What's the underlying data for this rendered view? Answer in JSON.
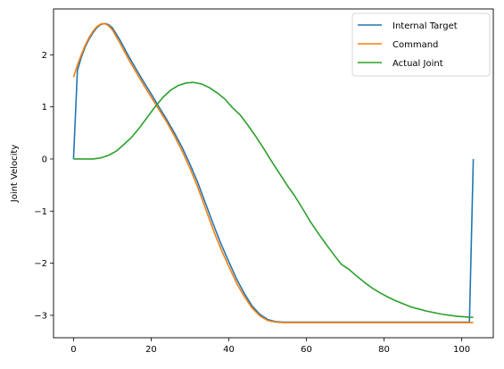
{
  "chart_data": {
    "type": "line",
    "title": "",
    "xlabel": "",
    "ylabel": "Joint Velocity",
    "xlim": [
      -5.15,
      108.15
    ],
    "ylim": [
      -3.43,
      2.88
    ],
    "xticks": [
      0,
      20,
      40,
      60,
      80,
      100
    ],
    "yticks": [
      -3,
      -2,
      -1,
      0,
      1,
      2
    ],
    "xtick_labels": [
      "0",
      "20",
      "40",
      "60",
      "80",
      "100"
    ],
    "ytick_labels": [
      "−3",
      "−2",
      "−1",
      "0",
      "1",
      "2"
    ],
    "grid": false,
    "legend_position": "top-right",
    "series": [
      {
        "name": "Internal Target",
        "color": "#1f77b4",
        "x": [
          0,
          1,
          2,
          3,
          4,
          5,
          6,
          7,
          8,
          9,
          10,
          12,
          14,
          16,
          18,
          20,
          22,
          24,
          26,
          28,
          30,
          32,
          34,
          36,
          38,
          40,
          42,
          44,
          46,
          48,
          50,
          52,
          54,
          56,
          58,
          60,
          70,
          80,
          90,
          100,
          102,
          103
        ],
        "y": [
          0,
          1.7,
          1.95,
          2.15,
          2.3,
          2.42,
          2.52,
          2.58,
          2.6,
          2.58,
          2.52,
          2.28,
          2.0,
          1.74,
          1.49,
          1.25,
          1.0,
          0.76,
          0.5,
          0.22,
          -0.1,
          -0.45,
          -0.85,
          -1.25,
          -1.63,
          -1.97,
          -2.3,
          -2.58,
          -2.82,
          -2.98,
          -3.08,
          -3.12,
          -3.13,
          -3.13,
          -3.13,
          -3.13,
          -3.13,
          -3.13,
          -3.13,
          -3.13,
          -3.13,
          0
        ]
      },
      {
        "name": "Command",
        "color": "#ff7f0e",
        "x": [
          0,
          1,
          2,
          3,
          4,
          5,
          6,
          7,
          8,
          9,
          10,
          12,
          14,
          16,
          18,
          20,
          22,
          24,
          26,
          28,
          30,
          32,
          34,
          36,
          38,
          40,
          42,
          44,
          46,
          48,
          50,
          52,
          54,
          56,
          58,
          60,
          70,
          80,
          90,
          100,
          103
        ],
        "y": [
          1.57,
          1.8,
          2.0,
          2.18,
          2.33,
          2.45,
          2.54,
          2.59,
          2.6,
          2.56,
          2.48,
          2.22,
          1.94,
          1.68,
          1.43,
          1.19,
          0.95,
          0.71,
          0.44,
          0.15,
          -0.18,
          -0.54,
          -0.95,
          -1.36,
          -1.73,
          -2.06,
          -2.38,
          -2.64,
          -2.86,
          -3.01,
          -3.1,
          -3.13,
          -3.14,
          -3.14,
          -3.14,
          -3.14,
          -3.14,
          -3.14,
          -3.14,
          -3.14,
          -3.14
        ]
      },
      {
        "name": "Actual Joint",
        "color": "#2ca02c",
        "x": [
          0,
          3,
          5,
          7,
          9,
          11,
          13,
          15,
          17,
          19,
          21,
          23,
          25,
          27,
          29,
          31,
          33,
          35,
          37,
          39,
          41,
          43,
          45,
          47,
          49,
          51,
          53,
          55,
          57,
          59,
          61,
          63,
          65,
          67,
          69,
          70,
          71,
          73,
          75,
          77,
          79,
          81,
          83,
          85,
          87,
          89,
          91,
          93,
          95,
          97,
          99,
          101,
          103
        ],
        "y": [
          0,
          0,
          0,
          0.02,
          0.07,
          0.15,
          0.28,
          0.42,
          0.6,
          0.8,
          1.0,
          1.18,
          1.32,
          1.41,
          1.46,
          1.47,
          1.44,
          1.37,
          1.27,
          1.15,
          0.98,
          0.84,
          0.64,
          0.43,
          0.2,
          -0.04,
          -0.27,
          -0.5,
          -0.71,
          -0.95,
          -1.2,
          -1.42,
          -1.63,
          -1.83,
          -2.02,
          -2.07,
          -2.12,
          -2.25,
          -2.37,
          -2.48,
          -2.57,
          -2.65,
          -2.72,
          -2.78,
          -2.84,
          -2.88,
          -2.92,
          -2.95,
          -2.98,
          -3.0,
          -3.02,
          -3.03,
          -3.04
        ]
      }
    ]
  }
}
